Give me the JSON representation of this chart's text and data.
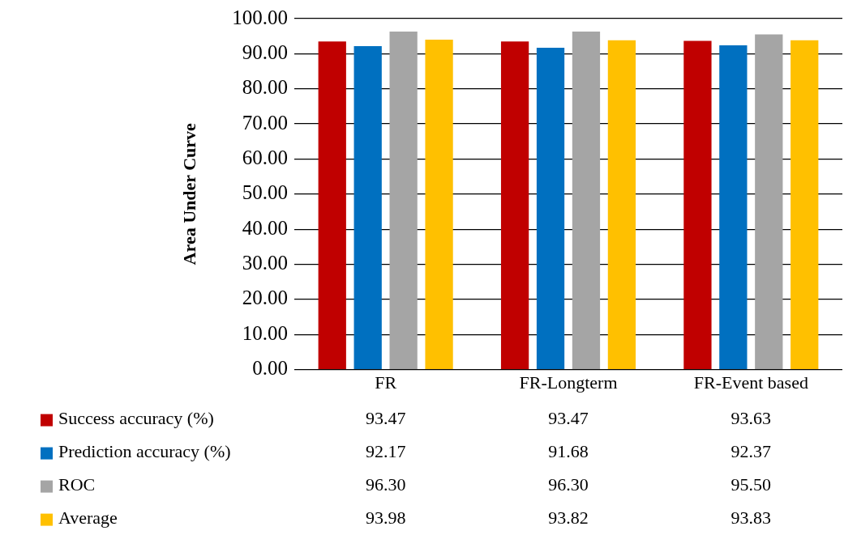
{
  "chart_data": {
    "type": "bar",
    "ylabel": "Area Under Curve",
    "categories": [
      "FR",
      "FR-Longterm",
      "FR-Event based"
    ],
    "series": [
      {
        "name": "Success accuracy (%)",
        "color": "#c00000",
        "values": [
          93.47,
          93.47,
          93.63
        ],
        "value_labels": [
          "93.47",
          "93.47",
          "93.63"
        ]
      },
      {
        "name": "Prediction accuracy (%)",
        "color": "#0070c0",
        "values": [
          92.17,
          91.68,
          92.37
        ],
        "value_labels": [
          "92.17",
          "91.68",
          "92.37"
        ]
      },
      {
        "name": "ROC",
        "color": "#a5a5a5",
        "values": [
          96.3,
          96.3,
          95.5
        ],
        "value_labels": [
          "96.30",
          "96.30",
          "95.50"
        ]
      },
      {
        "name": "Average",
        "color": "#ffc000",
        "values": [
          93.98,
          93.82,
          93.83
        ],
        "value_labels": [
          "93.98",
          "93.82",
          "93.83"
        ]
      }
    ],
    "ylim": [
      0,
      100
    ],
    "yticks": [
      {
        "value": 0,
        "label": "0.00"
      },
      {
        "value": 10,
        "label": "10.00"
      },
      {
        "value": 20,
        "label": "20.00"
      },
      {
        "value": 30,
        "label": "30.00"
      },
      {
        "value": 40,
        "label": "40.00"
      },
      {
        "value": 50,
        "label": "50.00"
      },
      {
        "value": 60,
        "label": "60.00"
      },
      {
        "value": 70,
        "label": "70.00"
      },
      {
        "value": 80,
        "label": "80.00"
      },
      {
        "value": 90,
        "label": "90.00"
      },
      {
        "value": 100,
        "label": "100.00"
      }
    ],
    "grid": "y",
    "legend": "bottom"
  }
}
